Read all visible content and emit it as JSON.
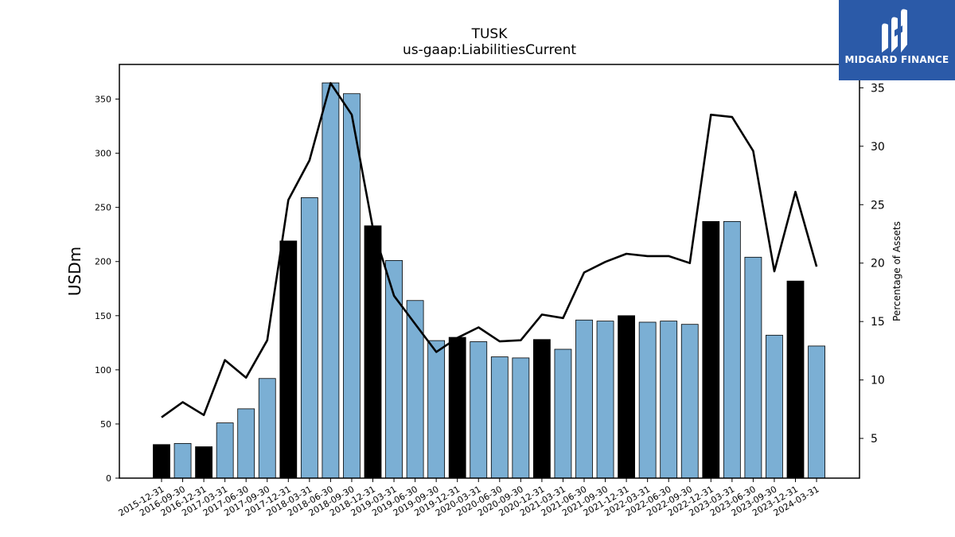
{
  "chart_data": {
    "type": "bar",
    "title": "TUSK",
    "subtitle": "us-gaap:LiabilitiesCurrent",
    "ylabel": "USDm",
    "y2label": "Percentage of Assets",
    "ylim": [
      0,
      382
    ],
    "y2lim": [
      1.6,
      37.0
    ],
    "yticks": [
      0,
      50,
      100,
      150,
      200,
      250,
      300,
      350
    ],
    "y2ticks": [
      5,
      10,
      15,
      20,
      25,
      30,
      35
    ],
    "categories": [
      "2015-12-31",
      "2016-09-30",
      "2016-12-31",
      "2017-03-31",
      "2017-06-30",
      "2017-09-30",
      "2017-12-31",
      "2018-03-31",
      "2018-06-30",
      "2018-09-30",
      "2018-12-31",
      "2019-03-31",
      "2019-06-30",
      "2019-09-30",
      "2019-12-31",
      "2020-03-31",
      "2020-06-30",
      "2020-09-30",
      "2020-12-31",
      "2021-03-31",
      "2021-06-30",
      "2021-09-30",
      "2021-12-31",
      "2022-03-31",
      "2022-06-30",
      "2022-09-30",
      "2022-12-31",
      "2023-03-31",
      "2023-06-30",
      "2023-09-30",
      "2023-12-31",
      "2024-03-31"
    ],
    "series": [
      {
        "kind": "bar",
        "values": [
          31,
          32,
          29,
          51,
          64,
          92,
          219,
          259,
          365,
          355,
          233,
          201,
          164,
          127,
          130,
          126,
          112,
          111,
          128,
          119,
          146,
          145,
          150,
          144,
          145,
          142,
          237,
          237,
          204,
          132,
          182,
          122
        ],
        "highlight": [
          true,
          false,
          true,
          false,
          false,
          false,
          true,
          false,
          false,
          false,
          true,
          false,
          false,
          false,
          true,
          false,
          false,
          false,
          true,
          false,
          false,
          false,
          true,
          false,
          false,
          false,
          true,
          false,
          false,
          false,
          true,
          false
        ]
      },
      {
        "kind": "line",
        "axis": "right",
        "values": [
          6.8,
          8.1,
          7.0,
          11.7,
          10.2,
          13.4,
          25.4,
          28.8,
          35.4,
          32.7,
          23.0,
          17.2,
          14.8,
          12.4,
          13.6,
          14.5,
          13.3,
          13.4,
          15.6,
          15.3,
          19.2,
          20.1,
          20.8,
          20.6,
          20.6,
          20.0,
          32.7,
          32.5,
          29.6,
          19.3,
          26.1,
          19.7
        ]
      }
    ],
    "colors": {
      "bar": "#7bafd4",
      "bar_highlight": "#000000",
      "line": "#000000",
      "edge": "#000000"
    },
    "grid": false
  },
  "logo": {
    "text": "MIDGARD FINANCE",
    "background": "#2b5aa8"
  }
}
